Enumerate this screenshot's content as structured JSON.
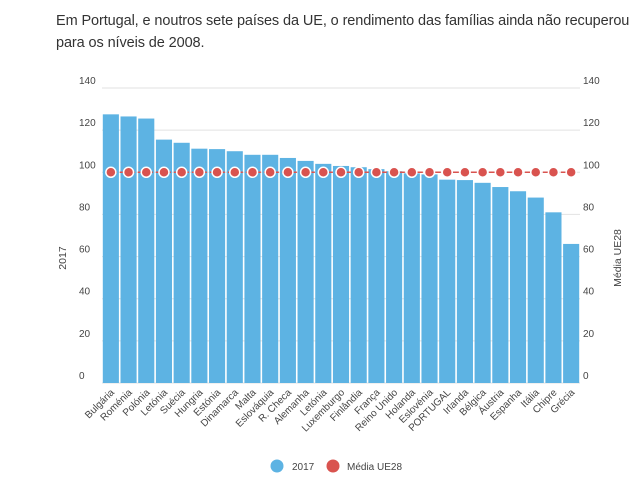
{
  "title": "Em Portugal, e noutros sete países da UE, o rendimento das famílias ainda não recuperou para os níveis de 2008.",
  "chart_data": {
    "type": "bar",
    "title": "Em Portugal, e noutros sete países da UE, o rendimento das famílias ainda não recuperou para os níveis de 2008.",
    "categories": [
      "Bulgária",
      "Roménia",
      "Polónia",
      "Letónia",
      "Suécia",
      "Hungria",
      "Estónia",
      "Dinamarca",
      "Malta",
      "Eslováquia",
      "R. Checa",
      "Alemanha",
      "Letónia",
      "Luxemburgo",
      "Finlândia",
      "França",
      "Reino Unido",
      "Holanda",
      "Eslovénia",
      "PORTUGAL",
      "Irlanda",
      "Bélgica",
      "Áustria",
      "Espanha",
      "Itália",
      "Chipre",
      "Grécia"
    ],
    "series": [
      {
        "name": "2017",
        "type": "bar",
        "color": "#5DB3E3",
        "values": [
          127.5,
          126.5,
          125.5,
          115.5,
          114,
          111.2,
          111,
          110,
          108.3,
          108.3,
          106.8,
          105.4,
          104,
          103,
          102.4,
          101.5,
          100.5,
          99.5,
          99,
          96.5,
          96.3,
          95,
          93,
          91,
          88,
          81,
          66
        ]
      },
      {
        "name": "Média UE28",
        "type": "line",
        "color": "#D9534F",
        "values": [
          100,
          100,
          100,
          100,
          100,
          100,
          100,
          100,
          100,
          100,
          100,
          100,
          100,
          100,
          100,
          100,
          100,
          100,
          100,
          100,
          100,
          100,
          100,
          100,
          100,
          100,
          100
        ]
      }
    ],
    "ylabel": "2017",
    "y2label": "Média UE28",
    "ylim": [
      0,
      140
    ],
    "yticks": [
      0,
      20,
      40,
      60,
      80,
      100,
      120,
      140
    ],
    "grid": true,
    "legend": "bottom"
  }
}
